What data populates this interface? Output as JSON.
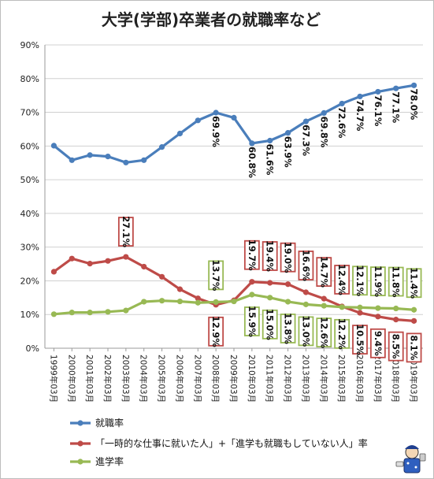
{
  "chart_data": {
    "type": "line",
    "title": "大学(学部)卒業者の就職率など",
    "categories": [
      "1999年03月",
      "2000年03月",
      "2001年03月",
      "2002年03月",
      "2003年03月",
      "2004年03月",
      "2005年03月",
      "2006年03月",
      "2007年03月",
      "2008年03月",
      "2009年03月",
      "2010年03月",
      "2011年03月",
      "2012年03月",
      "2013年03月",
      "2014年03月",
      "2015年03月",
      "2016年03月",
      "2017年03月",
      "2018年03月",
      "2019年03月"
    ],
    "ylim": [
      0,
      90
    ],
    "y_ticks": [
      "0%",
      "10%",
      "20%",
      "30%",
      "40%",
      "50%",
      "60%",
      "70%",
      "80%",
      "90%"
    ],
    "grid": true,
    "legend_position": "bottom",
    "series": [
      {
        "name": "就職率",
        "color": "#4a7ebb",
        "values": [
          60.1,
          55.8,
          57.3,
          56.9,
          55.1,
          55.8,
          59.7,
          63.7,
          67.6,
          69.9,
          68.4,
          60.8,
          61.6,
          63.9,
          67.3,
          69.8,
          72.6,
          74.7,
          76.1,
          77.1,
          78.0
        ],
        "labels": [
          null,
          null,
          null,
          null,
          null,
          null,
          null,
          null,
          null,
          "69.9%",
          null,
          "60.8%",
          "61.6%",
          "63.9%",
          "67.3%",
          "69.8%",
          "72.6%",
          "74.7%",
          "76.1%",
          "77.1%",
          "78.0%"
        ]
      },
      {
        "name": "「一時的な仕事に就いた人」+「進学も就職もしていない人」率",
        "color": "#be4b48",
        "values": [
          22.7,
          26.6,
          25.1,
          25.9,
          27.1,
          24.2,
          21.2,
          17.5,
          14.8,
          12.9,
          14.2,
          19.7,
          19.4,
          19.0,
          16.6,
          14.7,
          12.4,
          10.5,
          9.4,
          8.5,
          8.1
        ],
        "labels": [
          null,
          null,
          null,
          null,
          "27.1%",
          null,
          null,
          null,
          null,
          "12.9%",
          null,
          "19.7%",
          "19.4%",
          "19.0%",
          "16.6%",
          "14.7%",
          "12.4%",
          "10.5%",
          "9.4%",
          "8.5%",
          "8.1%"
        ]
      },
      {
        "name": "進学率",
        "color": "#98b954",
        "values": [
          10.1,
          10.6,
          10.6,
          10.8,
          11.2,
          13.8,
          14.1,
          13.9,
          13.5,
          13.7,
          13.9,
          15.9,
          15.0,
          13.8,
          13.0,
          12.6,
          12.2,
          12.1,
          11.9,
          11.8,
          11.4
        ],
        "labels": [
          null,
          null,
          null,
          null,
          null,
          null,
          null,
          null,
          null,
          "13.7%",
          null,
          "15.9%",
          "15.0%",
          "13.8%",
          "13.0%",
          "12.6%",
          "12.2%",
          "12.1%",
          "11.9%",
          "11.8%",
          "11.4%"
        ]
      }
    ]
  }
}
